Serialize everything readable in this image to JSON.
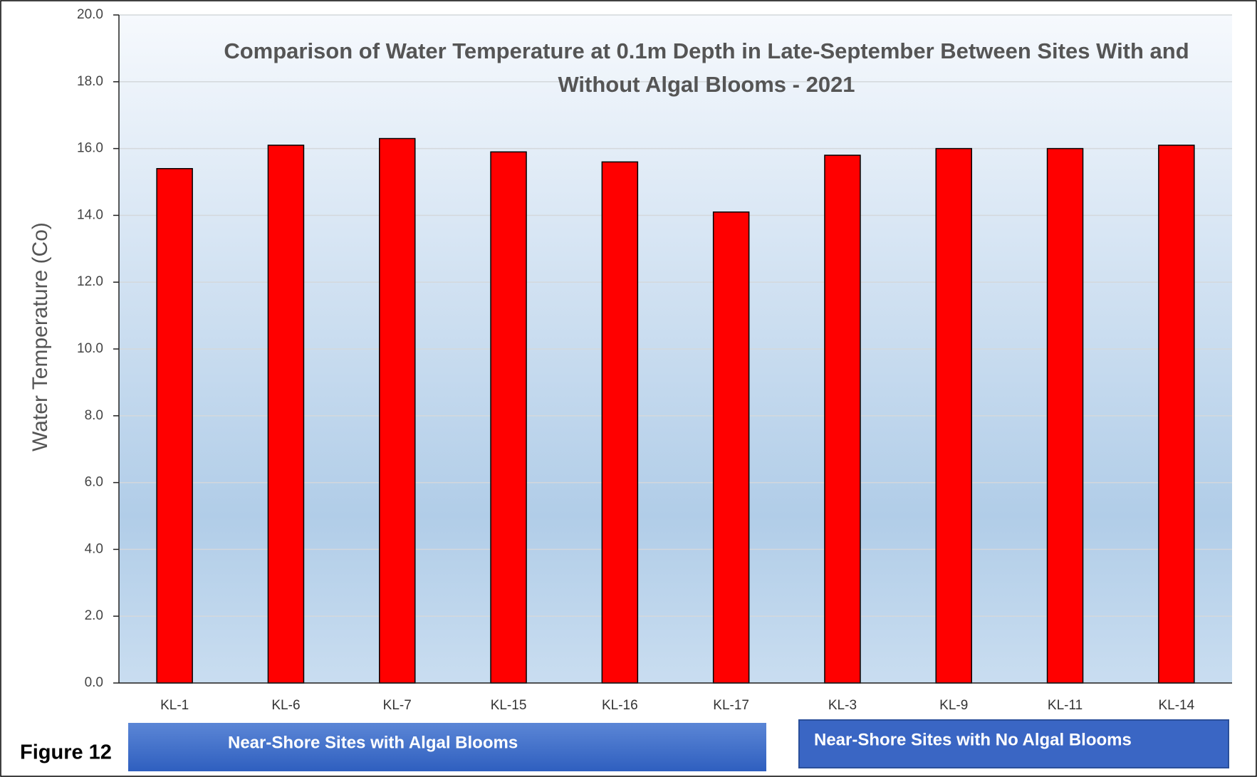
{
  "chart_data": {
    "type": "bar",
    "title": "Comparison of Water Temperature at 0.1m Depth in Late-September Between Sites With and Without Algal Blooms - 2021",
    "y_label": "Water Temperature (Co)",
    "categories": [
      "KL-1",
      "KL-6",
      "KL-7",
      "KL-15",
      "KL-16",
      "KL-17",
      "KL-3",
      "KL-9",
      "KL-11",
      "KL-14"
    ],
    "values": [
      15.4,
      16.1,
      16.3,
      15.9,
      15.6,
      14.1,
      15.8,
      16.0,
      16.0,
      16.1
    ],
    "color": "#ff0000",
    "ylim": [
      0,
      20
    ],
    "yticks": [
      {
        "value": 0,
        "label": "0.0"
      },
      {
        "value": 2,
        "label": "2.0"
      },
      {
        "value": 4,
        "label": "4.0"
      },
      {
        "value": 6,
        "label": "6.0"
      },
      {
        "value": 8,
        "label": "8.0"
      },
      {
        "value": 10,
        "label": "10.0"
      },
      {
        "value": 12,
        "label": "12.0"
      },
      {
        "value": 14,
        "label": "14.0"
      },
      {
        "value": 16,
        "label": "16.0"
      },
      {
        "value": 18,
        "label": "18.0"
      },
      {
        "value": 20,
        "label": "20.0"
      }
    ],
    "grid": true,
    "group_labels": [
      "Near-Shore Sites with Algal Blooms",
      "Near-Shore Sites with No Algal Blooms"
    ],
    "figure_label": "Figure 12"
  }
}
